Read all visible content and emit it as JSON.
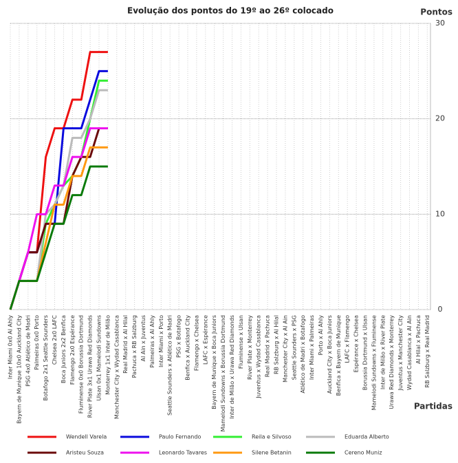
{
  "chart_data": {
    "type": "line",
    "title": "Evolução dos pontos do 19º ao 26º colocado",
    "y_label": "Pontos",
    "x_label": "Partidas",
    "categories": [
      "Inter Miami 0x0 Al Ahly",
      "Bayern de Munique 10x0 Auckland City",
      "PSG 4x0 Atlético de Madri",
      "Palmeiras 0x0 Porto",
      "Botafogo 2x1 Seattle Sounders",
      "Chelsea 2x0 LAFC",
      "Boca Juniors 2x2 Benfica",
      "Flamengo 2x0 Espérance",
      "Fluminense 0x0 Borussia Dortmund",
      "River Plate 3x1 Urawa Red Diamonds",
      "Ulsan 0x1 Mamelodi Sundowns",
      "Monterrey 1x1 Inter de Milão",
      "Manchester City x Wydad Casablanca",
      "Real Madrid x Al Hilal",
      "Pachuca x RB Salzburg",
      "Al Ain x Juventus",
      "Palmeiras x Al Ahly",
      "Inter Miami x Porto",
      "Seattle Sounders x Atlético de Madri",
      "PSG x Botafogo",
      "Benfica x Auckland City",
      "Flamengo x Chelsea",
      "LAFC x Espérance",
      "Bayern de Munique x Boca Juniors",
      "Mamelodi Sundowns x Borussia Dortmund",
      "Inter de Milão x Urawa Red Diamonds",
      "Fluminense x Ulsan",
      "River Plate x Monterrey",
      "Juventus x Wydad Casablanca",
      "Real Madrid x Pachuca",
      "RB Salzburg x Al Hilal",
      "Manchester City x Al Ain",
      "Seattle Sounders x PSG",
      "Atlético de Madri x Botafogo",
      "Inter Miami x Palmeiras",
      "Porto x Al Ahly",
      "Auckland City x Boca Juniors",
      "Benfica x Bayern de Munique",
      "LAFC x Flamengo",
      "Espérance x Chelsea",
      "Borussia Dortmund x Ulsan",
      "Mamelodi Sundowns x Fluminense",
      "Inter de Milão x River Plate",
      "Urawa Red Diamonds x Monterrey",
      "Juventus x Manchester City",
      "Wydad Casablanca x Al Ain",
      "Al Hilal x Pachuca",
      "RB Salzburg x Real Madrid"
    ],
    "series": [
      {
        "name": "Wendell Varela",
        "color": "#ee1111",
        "values": [
          0,
          3,
          6,
          6,
          16,
          19,
          19,
          22,
          22,
          27,
          27,
          27,
          null,
          null,
          null,
          null,
          null,
          null,
          null,
          null,
          null,
          null,
          null,
          null,
          null,
          null,
          null,
          null,
          null,
          null,
          null,
          null,
          null,
          null,
          null,
          null,
          null,
          null,
          null,
          null,
          null,
          null,
          null,
          null,
          null,
          null,
          null,
          null
        ]
      },
      {
        "name": "Paulo Fernando",
        "color": "#0a0add",
        "values": [
          0,
          3,
          6,
          6,
          9,
          9,
          19,
          19,
          19,
          22,
          25,
          25,
          null,
          null,
          null,
          null,
          null,
          null,
          null,
          null,
          null,
          null,
          null,
          null,
          null,
          null,
          null,
          null,
          null,
          null,
          null,
          null,
          null,
          null,
          null,
          null,
          null,
          null,
          null,
          null,
          null,
          null,
          null,
          null,
          null,
          null,
          null,
          null
        ]
      },
      {
        "name": "Reila e Silvoso",
        "color": "#33ee33",
        "values": [
          0,
          3,
          3,
          3,
          9,
          11,
          13,
          14,
          16,
          20,
          24,
          24,
          null,
          null,
          null,
          null,
          null,
          null,
          null,
          null,
          null,
          null,
          null,
          null,
          null,
          null,
          null,
          null,
          null,
          null,
          null,
          null,
          null,
          null,
          null,
          null,
          null,
          null,
          null,
          null,
          null,
          null,
          null,
          null,
          null,
          null,
          null,
          null
        ]
      },
      {
        "name": "Eduarda Alberto",
        "color": "#bbbbbb",
        "values": [
          0,
          3,
          3,
          3,
          10,
          11,
          13,
          18,
          18,
          20,
          23,
          23,
          null,
          null,
          null,
          null,
          null,
          null,
          null,
          null,
          null,
          null,
          null,
          null,
          null,
          null,
          null,
          null,
          null,
          null,
          null,
          null,
          null,
          null,
          null,
          null,
          null,
          null,
          null,
          null,
          null,
          null,
          null,
          null,
          null,
          null,
          null,
          null
        ]
      },
      {
        "name": "Aristeu Souza",
        "color": "#6b0a0a",
        "values": [
          0,
          3,
          6,
          6,
          9,
          9,
          9,
          14,
          16,
          16,
          19,
          19,
          null,
          null,
          null,
          null,
          null,
          null,
          null,
          null,
          null,
          null,
          null,
          null,
          null,
          null,
          null,
          null,
          null,
          null,
          null,
          null,
          null,
          null,
          null,
          null,
          null,
          null,
          null,
          null,
          null,
          null,
          null,
          null,
          null,
          null,
          null,
          null
        ]
      },
      {
        "name": "Leonardo Tavares",
        "color": "#ee11ee",
        "values": [
          0,
          3,
          6,
          10,
          10,
          13,
          13,
          16,
          16,
          19,
          19,
          19,
          null,
          null,
          null,
          null,
          null,
          null,
          null,
          null,
          null,
          null,
          null,
          null,
          null,
          null,
          null,
          null,
          null,
          null,
          null,
          null,
          null,
          null,
          null,
          null,
          null,
          null,
          null,
          null,
          null,
          null,
          null,
          null,
          null,
          null,
          null,
          null
        ]
      },
      {
        "name": "Silene Betanin",
        "color": "#ff9911",
        "values": [
          0,
          3,
          3,
          3,
          7,
          11,
          11,
          14,
          14,
          17,
          17,
          17,
          null,
          null,
          null,
          null,
          null,
          null,
          null,
          null,
          null,
          null,
          null,
          null,
          null,
          null,
          null,
          null,
          null,
          null,
          null,
          null,
          null,
          null,
          null,
          null,
          null,
          null,
          null,
          null,
          null,
          null,
          null,
          null,
          null,
          null,
          null,
          null
        ]
      },
      {
        "name": "Cereno Muniz",
        "color": "#0a7a0a",
        "values": [
          0,
          3,
          3,
          3,
          6,
          9,
          9,
          12,
          12,
          15,
          15,
          15,
          null,
          null,
          null,
          null,
          null,
          null,
          null,
          null,
          null,
          null,
          null,
          null,
          null,
          null,
          null,
          null,
          null,
          null,
          null,
          null,
          null,
          null,
          null,
          null,
          null,
          null,
          null,
          null,
          null,
          null,
          null,
          null,
          null,
          null,
          null,
          null
        ]
      }
    ],
    "ylim": [
      0,
      30
    ],
    "yticks": [
      0,
      10,
      20,
      30
    ],
    "grid": true
  }
}
